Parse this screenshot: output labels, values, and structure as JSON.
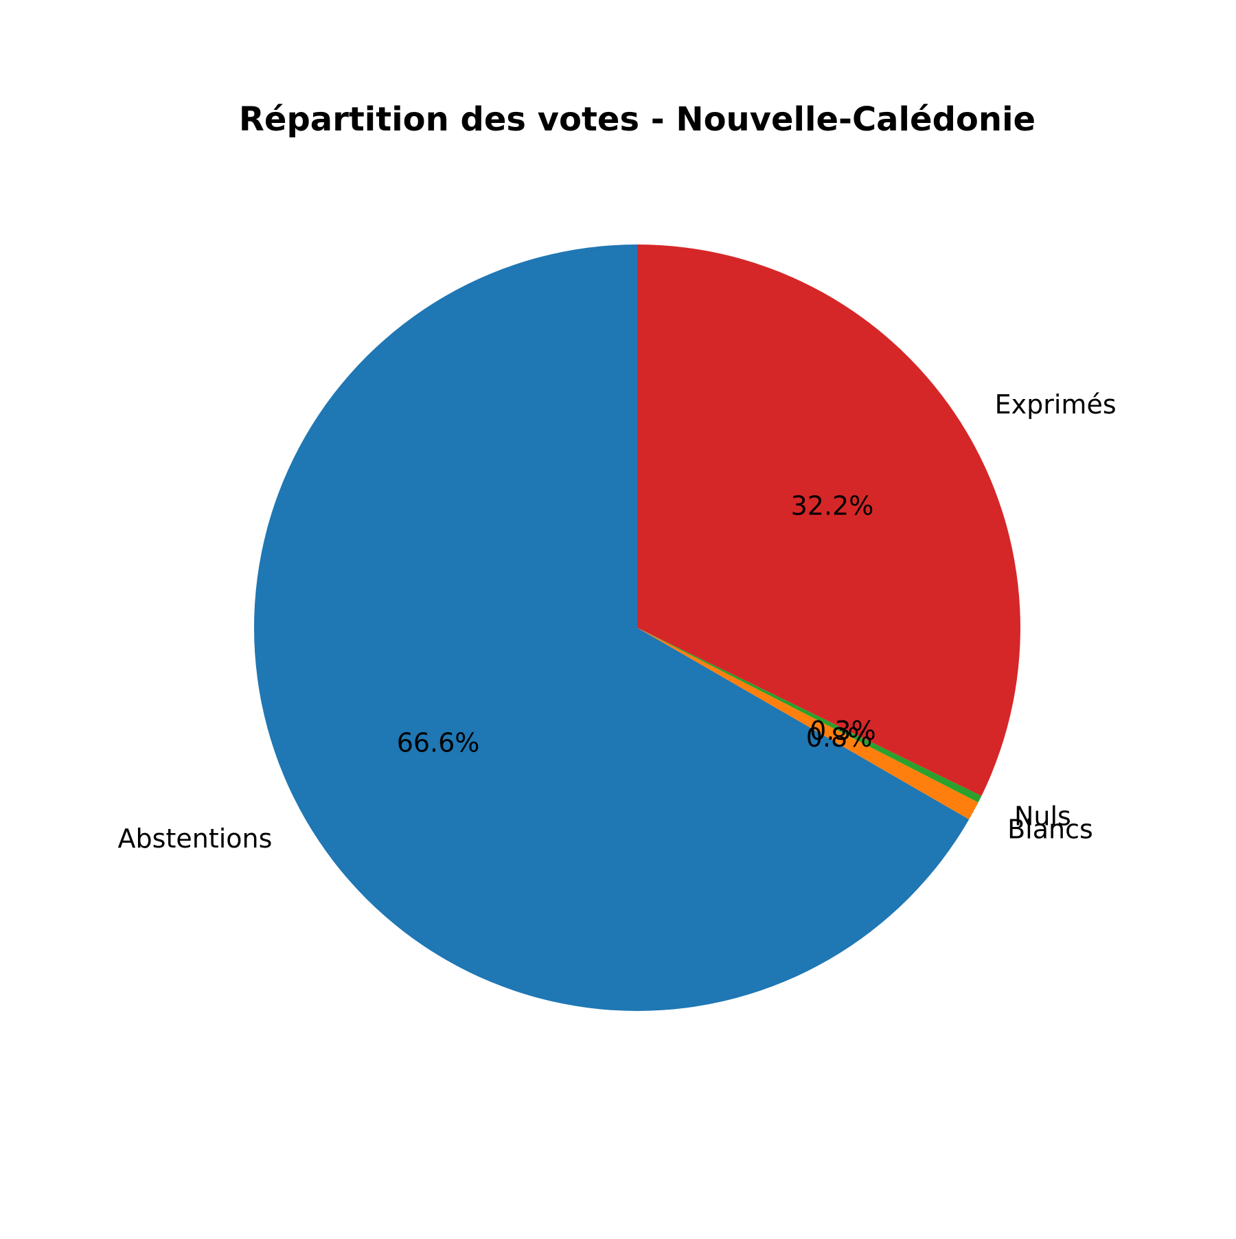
{
  "chart_data": {
    "type": "pie",
    "title": "Répartition des votes - Nouvelle-Calédonie",
    "start_angle_deg": 90,
    "direction": "counterclockwise",
    "slices": [
      {
        "label": "Abstentions",
        "value": 66.6,
        "pct_label": "66.6%",
        "color": "#1f77b4"
      },
      {
        "label": "Blancs",
        "value": 0.8,
        "pct_label": "0.8%",
        "color": "#ff7f0e"
      },
      {
        "label": "Nuls",
        "value": 0.3,
        "pct_label": "0.3%",
        "color": "#2ca02c"
      },
      {
        "label": "Exprimés",
        "value": 32.2,
        "pct_label": "32.2%",
        "color": "#d62728"
      }
    ]
  }
}
